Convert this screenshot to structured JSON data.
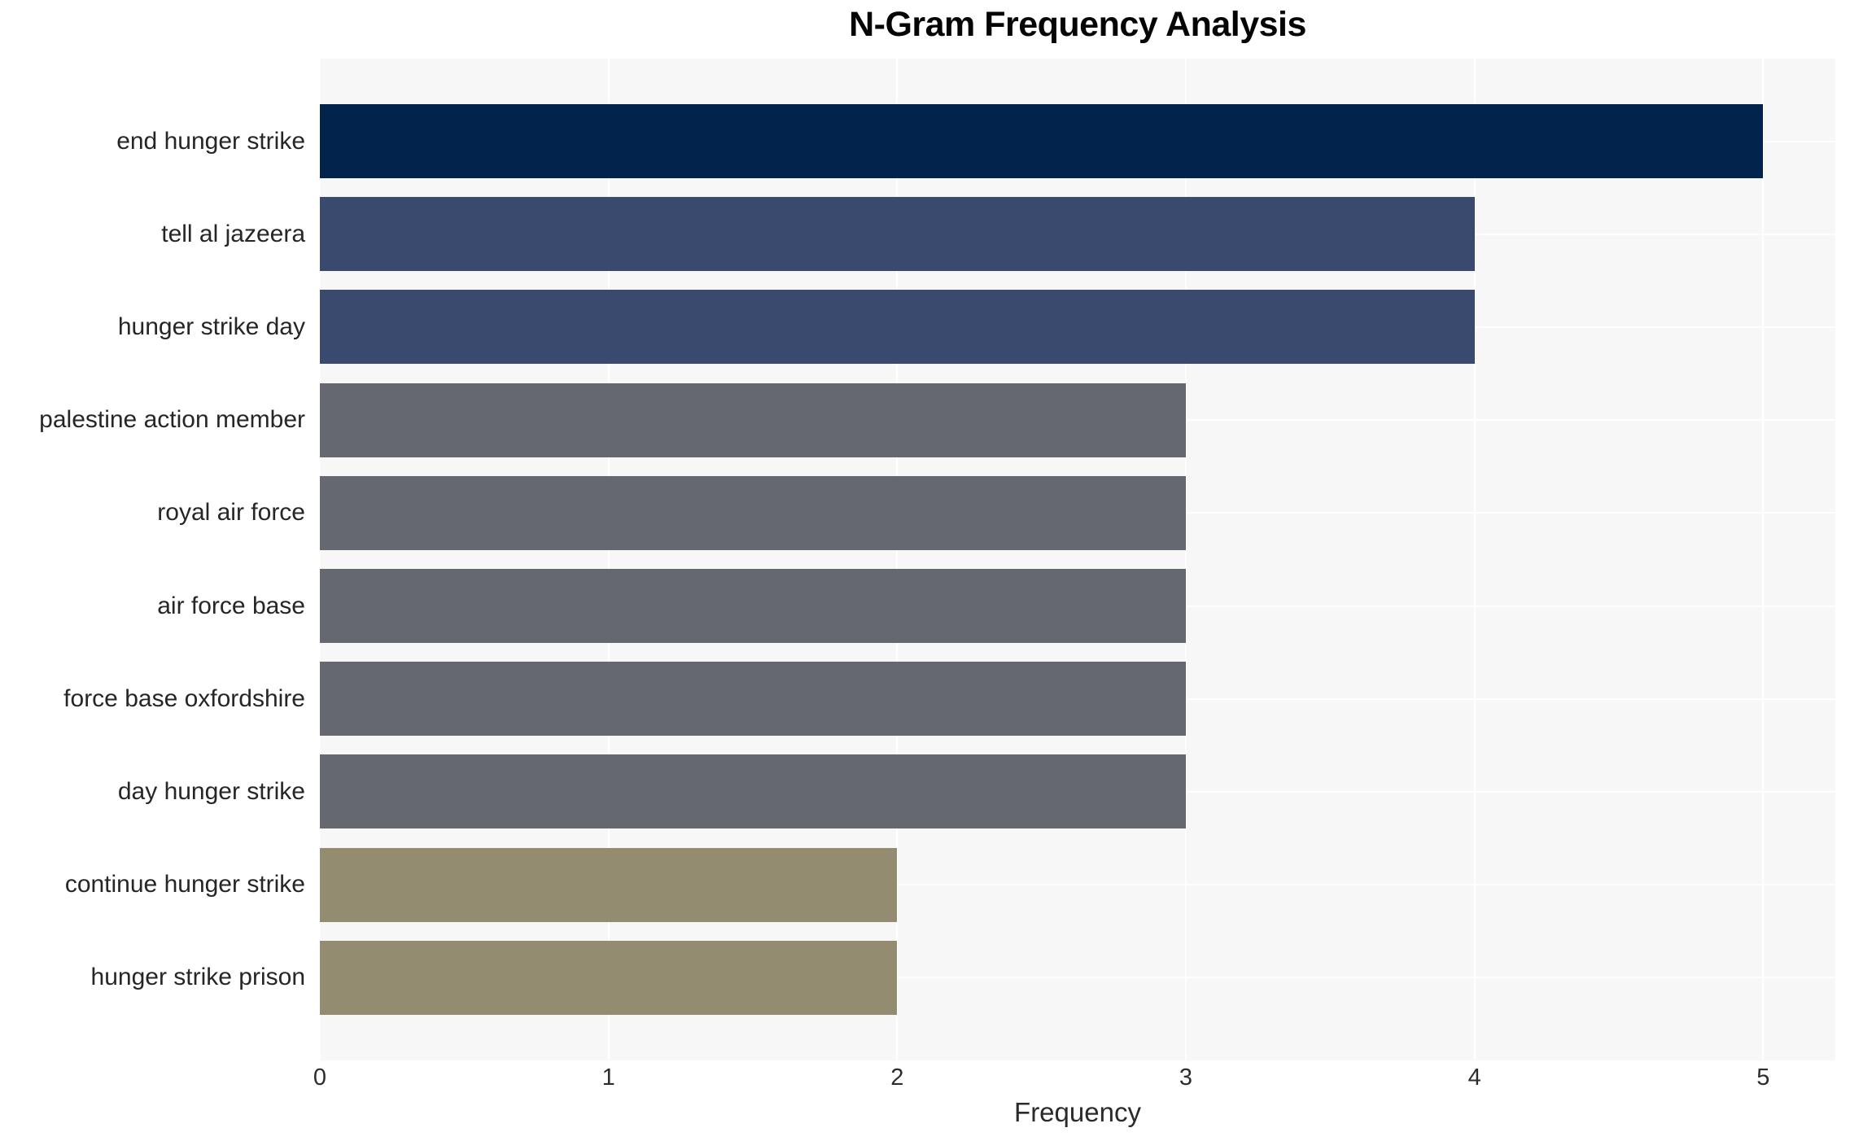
{
  "chart_data": {
    "type": "bar",
    "orientation": "horizontal",
    "title": "N-Gram Frequency Analysis",
    "xlabel": "Frequency",
    "ylabel": "",
    "categories": [
      "end hunger strike",
      "tell al jazeera",
      "hunger strike day",
      "palestine action member",
      "royal air force",
      "air force base",
      "force base oxfordshire",
      "day hunger strike",
      "continue hunger strike",
      "hunger strike prison"
    ],
    "values": [
      5,
      4,
      4,
      3,
      3,
      3,
      3,
      3,
      2,
      2
    ],
    "bar_colors": [
      "#02234c",
      "#3a4a6e",
      "#3a4a6e",
      "#65686f",
      "#65686f",
      "#65686f",
      "#65686f",
      "#65686f",
      "#948c71",
      "#948c71"
    ],
    "xticks": [
      0,
      1,
      2,
      3,
      4,
      5
    ],
    "xlim": [
      0,
      5.25
    ],
    "grid": true,
    "legend": "none",
    "plot_background": "#f7f7f8",
    "grid_color": "#ffffff"
  }
}
